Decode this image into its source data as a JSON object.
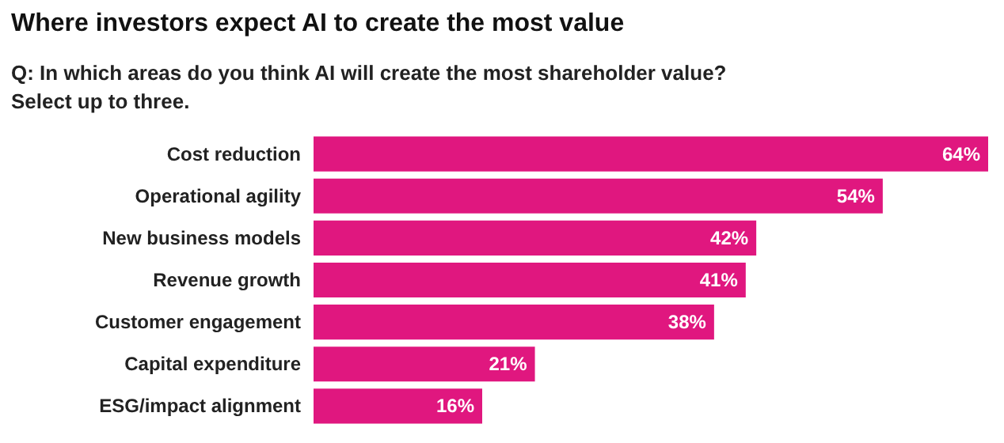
{
  "chart_data": {
    "type": "bar",
    "orientation": "horizontal",
    "title": "Where investors expect AI to create the most value",
    "subtitle": "Q: In which areas do you think AI will create the most shareholder value?\nSelect up to three.",
    "categories": [
      "Cost reduction",
      "Operational agility",
      "New business models",
      "Revenue growth",
      "Customer engagement",
      "Capital expenditure",
      "ESG/impact alignment"
    ],
    "values": [
      64,
      54,
      42,
      41,
      38,
      21,
      16
    ],
    "value_labels": [
      "64%",
      "54%",
      "42%",
      "41%",
      "38%",
      "21%",
      "16%"
    ],
    "color": "#e0177f"
  }
}
